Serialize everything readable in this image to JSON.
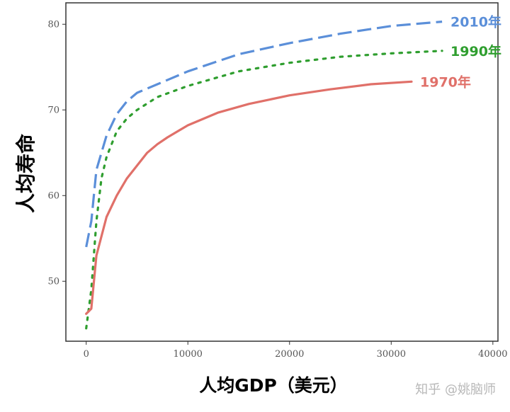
{
  "chart_data": {
    "type": "line",
    "xlabel": "人均GDP（美元）",
    "ylabel": "人均寿命",
    "xlim": [
      -2000,
      40500
    ],
    "ylim": [
      43,
      82.5
    ],
    "xticks": [
      0,
      10000,
      20000,
      30000,
      40000
    ],
    "yticks": [
      50,
      60,
      70,
      80
    ],
    "grid": false,
    "series": [
      {
        "name": "2010年",
        "color": "#5b8fd9",
        "style": "dashed",
        "x": [
          0,
          500,
          1000,
          2000,
          3000,
          4000,
          5000,
          7000,
          10000,
          15000,
          20000,
          25000,
          30000,
          35000
        ],
        "y": [
          54,
          57,
          63,
          67,
          69.5,
          71,
          72,
          73,
          74.5,
          76.5,
          77.8,
          78.9,
          79.8,
          80.3
        ]
      },
      {
        "name": "1990年",
        "color": "#2f9e2f",
        "style": "dotted",
        "x": [
          0,
          500,
          1000,
          1500,
          2000,
          3000,
          4000,
          5000,
          7000,
          10000,
          15000,
          20000,
          25000,
          30000,
          35000
        ],
        "y": [
          44.5,
          49,
          57,
          62,
          64.5,
          67.5,
          69,
          70,
          71.5,
          72.8,
          74.5,
          75.5,
          76.2,
          76.6,
          76.9
        ]
      },
      {
        "name": "1970年",
        "color": "#e07069",
        "style": "solid",
        "x": [
          0,
          500,
          1000,
          2000,
          3000,
          4000,
          5000,
          6000,
          7000,
          8000,
          10000,
          13000,
          16000,
          20000,
          24000,
          28000,
          32000
        ],
        "y": [
          46.2,
          46.8,
          53,
          57.5,
          60,
          62,
          63.5,
          65,
          66,
          66.8,
          68.2,
          69.7,
          70.7,
          71.7,
          72.4,
          73,
          73.3
        ]
      }
    ]
  },
  "watermark": "知乎 @姚脑师"
}
